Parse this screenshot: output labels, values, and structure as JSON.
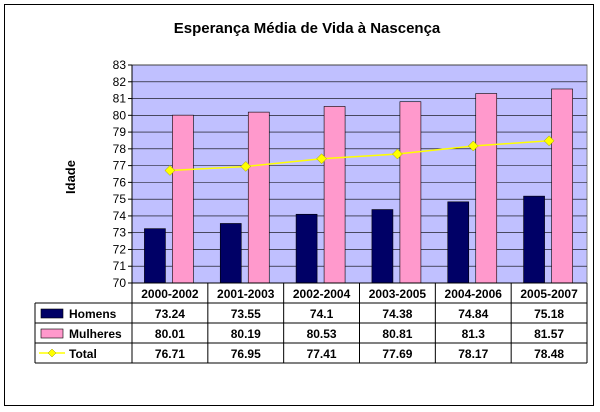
{
  "chart_data": {
    "type": "bar",
    "title": "Esperança Média de Vida à Nascença",
    "ylabel": "Idade",
    "xlabel": "",
    "ylim": [
      70,
      83
    ],
    "yticks": [
      70,
      71,
      72,
      73,
      74,
      75,
      76,
      77,
      78,
      79,
      80,
      81,
      82,
      83
    ],
    "grid": true,
    "legend": "data-table-below",
    "categories": [
      "2000-2002",
      "2001-2003",
      "2002-2004",
      "2003-2005",
      "2004-2006",
      "2005-2007"
    ],
    "series": [
      {
        "name": "Homens",
        "kind": "bar",
        "color": "#000066",
        "values": [
          73.24,
          73.55,
          74.1,
          74.38,
          74.84,
          75.18
        ],
        "labels": [
          "73.24",
          "73.55",
          "74.1",
          "74.38",
          "74.84",
          "75.18"
        ]
      },
      {
        "name": "Mulheres",
        "kind": "bar",
        "color": "#FF99CC",
        "values": [
          80.01,
          80.19,
          80.53,
          80.81,
          81.3,
          81.57
        ],
        "labels": [
          "80.01",
          "80.19",
          "80.53",
          "80.81",
          "81.3",
          "81.57"
        ]
      },
      {
        "name": "Total",
        "kind": "line",
        "color": "#FFFF00",
        "values": [
          76.71,
          76.95,
          77.41,
          77.69,
          78.17,
          78.48
        ],
        "labels": [
          "76.71",
          "76.95",
          "77.41",
          "77.69",
          "78.17",
          "78.48"
        ]
      }
    ],
    "colors": {
      "plot_background": "#C0C0FF",
      "frame": "#000000"
    }
  }
}
